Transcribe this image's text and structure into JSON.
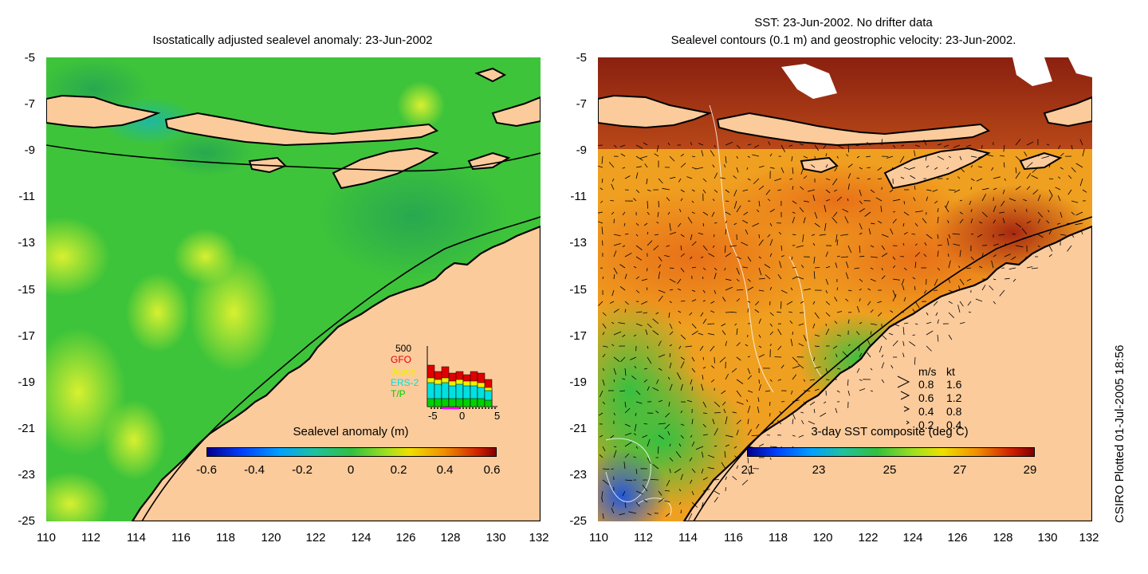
{
  "left_panel": {
    "title": "Isostatically adjusted sealevel anomaly: 23-Jun-2002",
    "colorbar": {
      "label": "Sealevel anomaly (m)",
      "ticks": [
        "-0.6",
        "-0.4",
        "-0.2",
        "0",
        "0.2",
        "0.4",
        "0.6"
      ]
    },
    "inset": {
      "ymax_label": "500",
      "satellites": [
        {
          "name": "GFO",
          "color": "#e00000"
        },
        {
          "name": "Jason",
          "color": "#f0f000"
        },
        {
          "name": "ERS-2",
          "color": "#00e0e0"
        },
        {
          "name": "T/P",
          "color": "#00d000"
        }
      ],
      "x_ticks": [
        "-5",
        "0",
        "5"
      ]
    }
  },
  "right_panel": {
    "title_line1": "SST: 23-Jun-2002. No drifter data",
    "title_line2": "Sealevel contours (0.1 m) and geostrophic velocity: 23-Jun-2002.",
    "colorbar": {
      "label": "3-day SST composite (deg C)",
      "ticks": [
        "21",
        "23",
        "25",
        "27",
        "29"
      ]
    },
    "velocity_legend": {
      "header_ms": "m/s",
      "header_kt": "kt",
      "rows": [
        {
          "ms": "0.8",
          "kt": "1.6"
        },
        {
          "ms": "0.6",
          "kt": "1.2"
        },
        {
          "ms": "0.4",
          "kt": "0.8"
        },
        {
          "ms": "0.2",
          "kt": "0.4"
        }
      ]
    }
  },
  "axes": {
    "y_ticks": [
      "-5",
      "-7",
      "-9",
      "-11",
      "-13",
      "-15",
      "-17",
      "-19",
      "-21",
      "-23",
      "-25"
    ],
    "x_ticks": [
      "110",
      "112",
      "114",
      "116",
      "118",
      "120",
      "122",
      "124",
      "126",
      "128",
      "130",
      "132"
    ]
  },
  "credit": "CSIRO Plotted 01-Jul-2005 18:56",
  "colors": {
    "land": "#fbcb9c",
    "ocean_sla": "#3ec43a",
    "ocean_sst": "#f0a020"
  }
}
